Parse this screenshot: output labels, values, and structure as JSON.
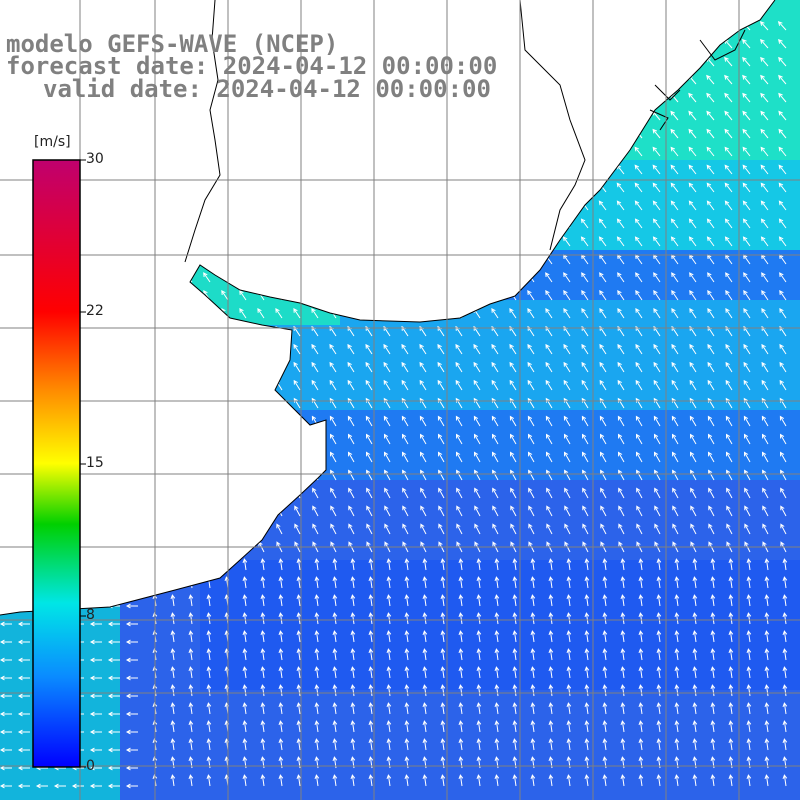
{
  "title": {
    "line1": "modelo GEFS-WAVE (NCEP)",
    "line2": "forecast date: 2024-04-12 00:00:00",
    "line3": "valid date: 2024-04-12 00:00:00"
  },
  "colorbar": {
    "unit": "[m/s]",
    "ticks": [
      "0",
      "8",
      "15",
      "22",
      "30"
    ],
    "range": [
      0,
      30
    ],
    "colors": [
      "#0000ff",
      "#0a8cff",
      "#00e6e6",
      "#00d000",
      "#ffff00",
      "#ff8c00",
      "#ff0000",
      "#c0006e"
    ]
  },
  "map": {
    "land_color": "#ffffff",
    "coastline_color": "#000000",
    "grid_color": "#808080",
    "vector_color": "#ffffff",
    "gridlines": true
  },
  "chart_data": {
    "type": "heatmap",
    "variable": "wind speed with direction vectors",
    "unit": "m/s",
    "colorbar_range": [
      0,
      30
    ],
    "observed_range_approx": [
      2,
      9
    ],
    "patterns": [
      {
        "region": "northeast coast",
        "speed_approx": 8,
        "direction": "from the southeast"
      },
      {
        "region": "central offshore",
        "speed_approx": 5,
        "direction": "from the southeast"
      },
      {
        "region": "southern zone",
        "speed_approx": 4,
        "direction": "from the south"
      },
      {
        "region": "southwest corner near coast",
        "speed_approx": 6,
        "direction": "from the east"
      }
    ]
  }
}
